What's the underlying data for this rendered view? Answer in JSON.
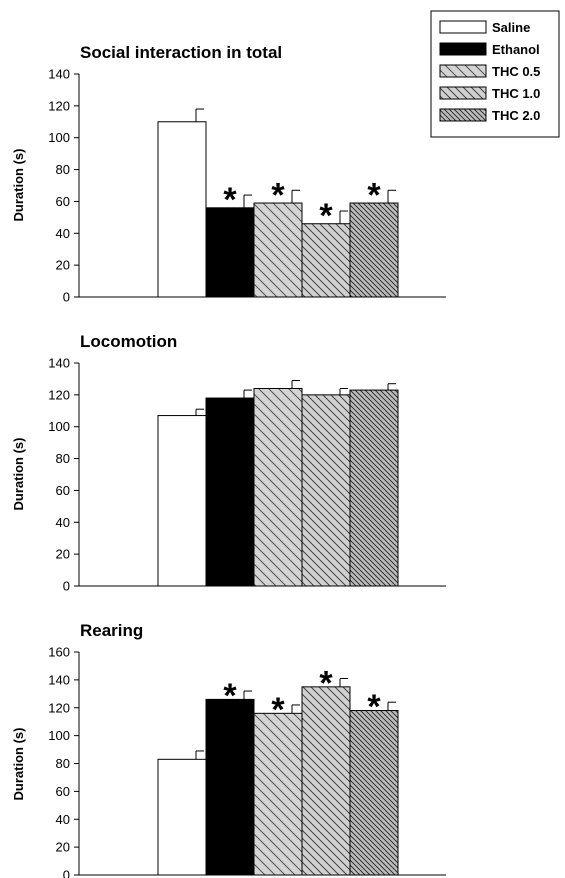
{
  "legend": {
    "placement": "top-right",
    "entries": [
      {
        "label": "Saline",
        "pattern": "white"
      },
      {
        "label": "Ethanol",
        "pattern": "black"
      },
      {
        "label": "THC 0.5",
        "pattern": "hatch-light"
      },
      {
        "label": "THC 1.0",
        "pattern": "hatch-medium"
      },
      {
        "label": "THC 2.0",
        "pattern": "hatch-dense"
      }
    ]
  },
  "chart_data": [
    {
      "type": "bar",
      "title": "Social interaction in total",
      "ylabel": "Duration (s)",
      "ylim": [
        0,
        140
      ],
      "yticks": [
        0,
        20,
        40,
        60,
        80,
        100,
        120,
        140
      ],
      "categories": [
        "Saline",
        "Ethanol",
        "THC 0.5",
        "THC 1.0",
        "THC 2.0"
      ],
      "values": [
        110,
        56,
        59,
        46,
        59
      ],
      "errors": [
        8,
        8,
        8,
        8,
        8
      ],
      "significant": [
        false,
        true,
        true,
        true,
        true
      ],
      "significance_marker": "*",
      "grid": false
    },
    {
      "type": "bar",
      "title": "Locomotion",
      "ylabel": "Duration (s)",
      "ylim": [
        0,
        140
      ],
      "yticks": [
        0,
        20,
        40,
        60,
        80,
        100,
        120,
        140
      ],
      "categories": [
        "Saline",
        "Ethanol",
        "THC 0.5",
        "THC 1.0",
        "THC 2.0"
      ],
      "values": [
        107,
        118,
        124,
        120,
        123
      ],
      "errors": [
        4,
        5,
        5,
        4,
        4
      ],
      "significant": [
        false,
        false,
        false,
        false,
        false
      ],
      "significance_marker": "*",
      "grid": false
    },
    {
      "type": "bar",
      "title": "Rearing",
      "ylabel": "Duration (s)",
      "ylim": [
        0,
        160
      ],
      "yticks": [
        0,
        20,
        40,
        60,
        80,
        100,
        120,
        140,
        160
      ],
      "categories": [
        "Saline",
        "Ethanol",
        "THC 0.5",
        "THC 1.0",
        "THC 2.0"
      ],
      "values": [
        83,
        126,
        116,
        135,
        118
      ],
      "errors": [
        6,
        6,
        6,
        6,
        6
      ],
      "significant": [
        false,
        true,
        true,
        true,
        true
      ],
      "significance_marker": "*",
      "grid": false
    }
  ]
}
